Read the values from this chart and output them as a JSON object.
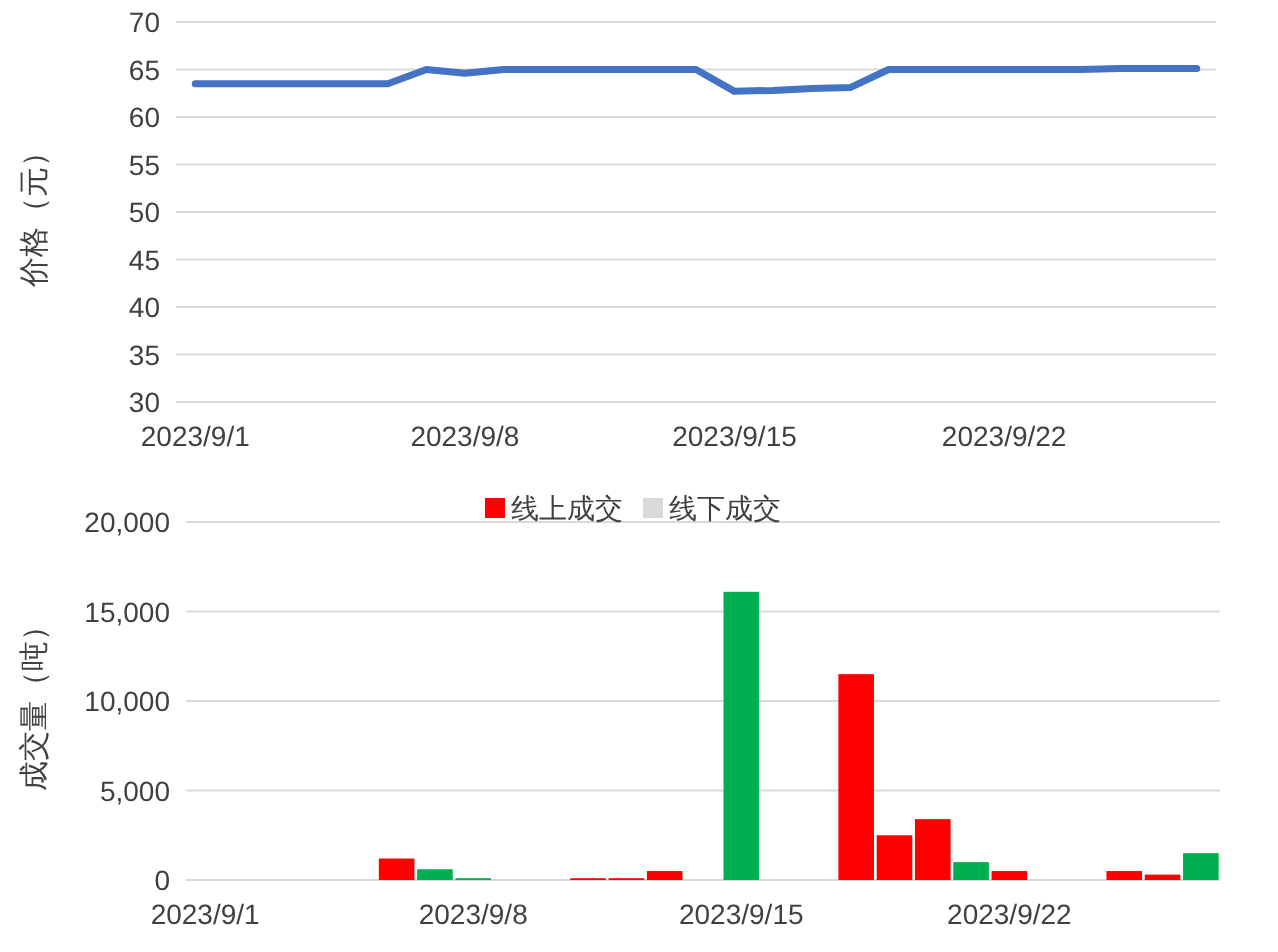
{
  "chart_data": [
    {
      "type": "line",
      "ylabel": "价格（元）",
      "x": [
        "2023-09-01",
        "2023-09-02",
        "2023-09-03",
        "2023-09-04",
        "2023-09-05",
        "2023-09-06",
        "2023-09-07",
        "2023-09-08",
        "2023-09-09",
        "2023-09-10",
        "2023-09-11",
        "2023-09-12",
        "2023-09-13",
        "2023-09-14",
        "2023-09-15",
        "2023-09-16",
        "2023-09-17",
        "2023-09-18",
        "2023-09-19",
        "2023-09-20",
        "2023-09-21",
        "2023-09-22",
        "2023-09-23",
        "2023-09-24",
        "2023-09-25",
        "2023-09-26",
        "2023-09-27"
      ],
      "series": [
        {
          "color": "#4472c4",
          "values": [
            63.5,
            63.5,
            63.5,
            63.5,
            63.5,
            63.5,
            65.0,
            64.6,
            65.0,
            65.0,
            65.0,
            65.0,
            65.0,
            65.0,
            62.7,
            62.8,
            63.0,
            63.1,
            65.0,
            65.0,
            65.0,
            65.0,
            65.0,
            65.0,
            65.1,
            65.1,
            65.1
          ]
        }
      ],
      "xlim": [
        "2023-08-31T12:00",
        "2023-09-27T12:00"
      ],
      "ylim": [
        30,
        70
      ],
      "yticks": [
        30,
        35,
        40,
        45,
        50,
        55,
        60,
        65,
        70
      ],
      "xticks": [
        {
          "value": "2023-09-01",
          "label": "2023/9/1"
        },
        {
          "value": "2023-09-08",
          "label": "2023/9/8"
        },
        {
          "value": "2023-09-15",
          "label": "2023/9/15"
        },
        {
          "value": "2023-09-22",
          "label": "2023/9/22"
        }
      ],
      "grid": "y",
      "legend": false,
      "marker": "none",
      "line_style": "solid"
    },
    {
      "type": "bar",
      "ylabel": "成交量（吨）",
      "series": [
        {
          "name": "线上成交",
          "color": "#ff0000",
          "x": [
            "2023-09-06",
            "2023-09-11",
            "2023-09-12",
            "2023-09-13",
            "2023-09-18",
            "2023-09-19",
            "2023-09-20",
            "2023-09-22",
            "2023-09-25",
            "2023-09-26"
          ],
          "values": [
            1200,
            100,
            100,
            500,
            11500,
            2500,
            3400,
            500,
            500,
            300
          ]
        },
        {
          "name": "线下成交",
          "color": "#d9d9d9",
          "colors": [
            "#00b050",
            "#00b050",
            "#00b050",
            "#00b050",
            "#00b050"
          ],
          "x": [
            "2023-09-07",
            "2023-09-08",
            "2023-09-15",
            "2023-09-21",
            "2023-09-27"
          ],
          "values": [
            600,
            100,
            16100,
            1000,
            1500
          ]
        }
      ],
      "xlim": [
        "2023-08-31T12:00",
        "2023-09-27T12:00"
      ],
      "ylim": [
        0,
        20000
      ],
      "yticks": [
        {
          "value": 0,
          "label": "0"
        },
        {
          "value": 5000,
          "label": "5,000"
        },
        {
          "value": 10000,
          "label": "10,000"
        },
        {
          "value": 15000,
          "label": "15,000"
        },
        {
          "value": 20000,
          "label": "20,000"
        }
      ],
      "xticks": [
        {
          "value": "2023-09-01",
          "label": "2023/9/1"
        },
        {
          "value": "2023-09-08",
          "label": "2023/9/8"
        },
        {
          "value": "2023-09-15",
          "label": "2023/9/15"
        },
        {
          "value": "2023-09-22",
          "label": "2023/9/22"
        }
      ],
      "grid": "y",
      "legend": "top"
    }
  ]
}
